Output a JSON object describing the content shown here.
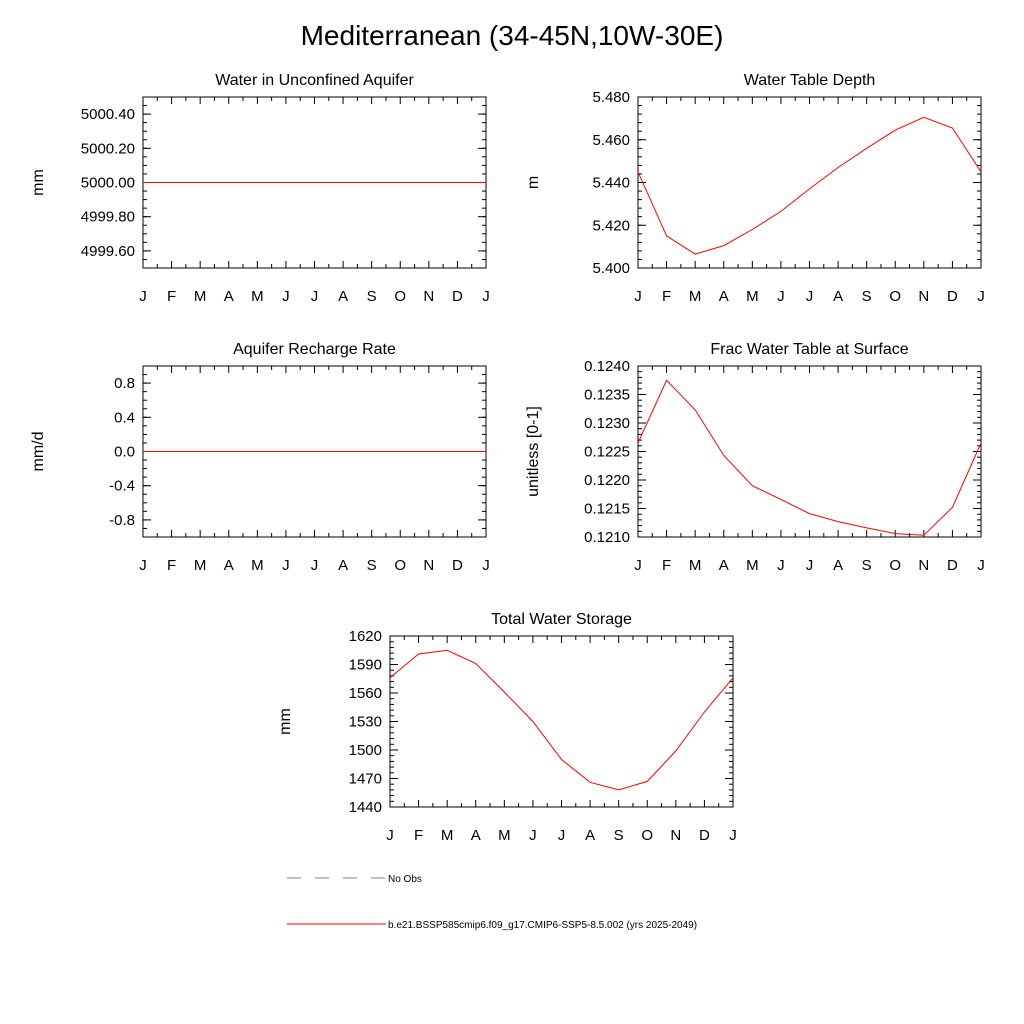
{
  "title": "Mediterranean (34-45N,10W-30E)",
  "months": [
    "J",
    "F",
    "M",
    "A",
    "M",
    "J",
    "J",
    "A",
    "S",
    "O",
    "N",
    "D",
    "J"
  ],
  "colors": {
    "model": "#ff0000",
    "obs": "#808080",
    "axis": "#000000"
  },
  "chart_data": [
    {
      "id": "aquifer",
      "type": "line",
      "title": "Water in Unconfined Aquifer",
      "ylabel": "mm",
      "ylim": [
        4999.5,
        5000.5
      ],
      "yticks": [
        4999.6,
        4999.8,
        5000.0,
        5000.2,
        5000.4
      ],
      "yticklabels": [
        "4999.60",
        "4999.80",
        "5000.00",
        "5000.20",
        "5000.40"
      ],
      "yminor": 0.05,
      "series": [
        {
          "values": [
            5000.0,
            5000.0,
            5000.0,
            5000.0,
            5000.0,
            5000.0,
            5000.0,
            5000.0,
            5000.0,
            5000.0,
            5000.0,
            5000.0,
            5000.0
          ]
        }
      ]
    },
    {
      "id": "wtd",
      "type": "line",
      "title": "Water Table Depth",
      "ylabel": "m",
      "ylim": [
        5.4,
        5.48
      ],
      "yticks": [
        5.4,
        5.42,
        5.44,
        5.46,
        5.48
      ],
      "yticklabels": [
        "5.400",
        "5.420",
        "5.440",
        "5.460",
        "5.480"
      ],
      "yminor": 0.004,
      "series": [
        {
          "values": [
            5.445,
            5.415,
            5.4065,
            5.4105,
            5.418,
            5.4265,
            5.437,
            5.447,
            5.456,
            5.4645,
            5.4705,
            5.4655,
            5.445
          ]
        }
      ]
    },
    {
      "id": "recharge",
      "type": "line",
      "title": "Aquifer Recharge Rate",
      "ylabel": "mm/d",
      "ylim": [
        -1.0,
        1.0
      ],
      "yticks": [
        -0.8,
        -0.4,
        0.0,
        0.4,
        0.8
      ],
      "yticklabels": [
        "-0.8",
        "-0.4",
        "0.0",
        "0.4",
        "0.8"
      ],
      "yminor": 0.1,
      "series": [
        {
          "values": [
            0,
            0,
            0,
            0,
            0,
            0,
            0,
            0,
            0,
            0,
            0,
            0,
            0
          ]
        }
      ]
    },
    {
      "id": "fwet",
      "type": "line",
      "title": "Frac Water Table at Surface",
      "ylabel": "unitless [0-1]",
      "ylim": [
        0.121,
        0.124
      ],
      "yticks": [
        0.121,
        0.1215,
        0.122,
        0.1225,
        0.123,
        0.1235,
        0.124
      ],
      "yticklabels": [
        "0.1210",
        "0.1215",
        "0.1220",
        "0.1225",
        "0.1230",
        "0.1235",
        "0.1240"
      ],
      "yminor": 0.0001,
      "series": [
        {
          "values": [
            0.12265,
            0.12375,
            0.12323,
            0.12243,
            0.1219,
            0.12166,
            0.12141,
            0.12127,
            0.12116,
            0.12106,
            0.12103,
            0.12152,
            0.12265
          ]
        }
      ]
    },
    {
      "id": "tws",
      "type": "line",
      "title": "Total Water Storage",
      "ylabel": "mm",
      "ylim": [
        1440,
        1620
      ],
      "yticks": [
        1440,
        1470,
        1500,
        1530,
        1560,
        1590,
        1620
      ],
      "yticklabels": [
        "1440",
        "1470",
        "1500",
        "1530",
        "1560",
        "1590",
        "1620"
      ],
      "yminor": 6,
      "series": [
        {
          "values": [
            1576,
            1601,
            1605,
            1591,
            1561,
            1530,
            1490,
            1466,
            1458,
            1467,
            1499,
            1540,
            1576
          ]
        }
      ]
    }
  ],
  "legend": {
    "obs_label": "No Obs",
    "model_label": "b.e21.BSSP585cmip6.f09_g17.CMIP6-SSP5-8.5.002 (yrs 2025-2049)"
  }
}
